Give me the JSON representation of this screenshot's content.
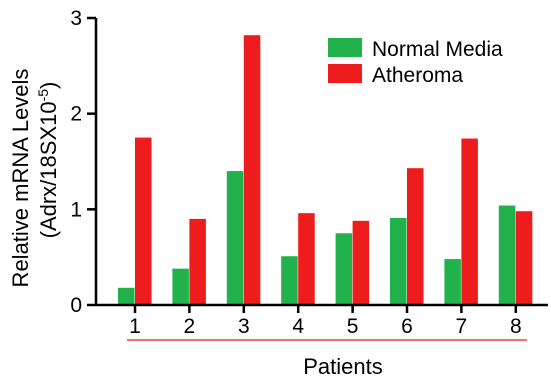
{
  "colors": {
    "normal": "#22b24c",
    "atheroma": "#ee1c1c",
    "axis": "#000000",
    "bracket": "#f07070"
  },
  "chart_data": {
    "type": "bar",
    "categories": [
      "1",
      "2",
      "3",
      "4",
      "5",
      "6",
      "7",
      "8"
    ],
    "series": [
      {
        "name": "Normal Media",
        "values": [
          0.18,
          0.38,
          1.4,
          0.51,
          0.75,
          0.91,
          0.48,
          1.04
        ]
      },
      {
        "name": "Atheroma",
        "values": [
          1.75,
          0.9,
          2.82,
          0.96,
          0.88,
          1.43,
          1.74,
          0.98
        ]
      }
    ],
    "title": "",
    "xlabel": "Patients",
    "ylabel_line1": "Relative mRNA Levels",
    "ylabel_line2_prefix": "(Adrx/18SX10",
    "ylabel_line2_exp": "-5",
    "ylabel_line2_suffix": ")",
    "ylim": [
      0,
      3
    ],
    "yticks": [
      "0",
      "1",
      "2",
      "3"
    ],
    "grid": false,
    "legend_position": "top-right"
  }
}
